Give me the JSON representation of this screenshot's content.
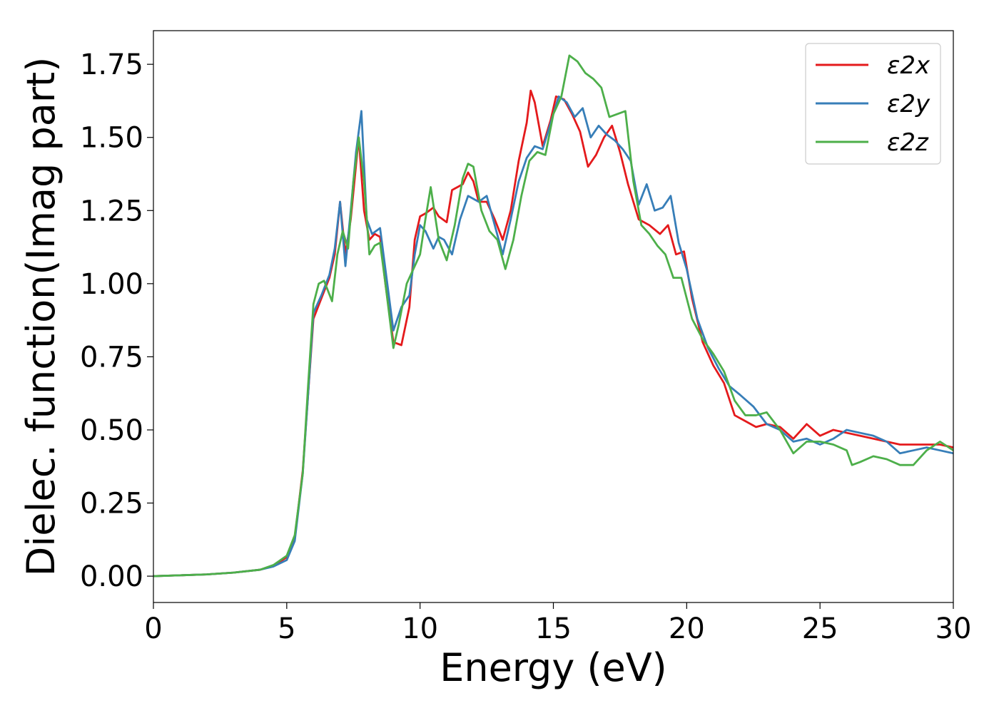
{
  "chart_data": {
    "type": "line",
    "xlabel": "Energy (eV)",
    "ylabel": "Dielec. function(Imag part)",
    "xlim": [
      0,
      30
    ],
    "ylim": [
      -0.09,
      1.865
    ],
    "xticks": [
      "0",
      "5",
      "10",
      "15",
      "20",
      "25",
      "30"
    ],
    "yticks": [
      "0.00",
      "0.25",
      "0.50",
      "0.75",
      "1.00",
      "1.25",
      "1.50",
      "1.75"
    ],
    "grid": false,
    "legend_position": "top-right",
    "series": [
      {
        "name": "ε2x",
        "color": "#e41a1c",
        "x": [
          0,
          1,
          2,
          3,
          4,
          4.5,
          5,
          5.3,
          5.6,
          5.8,
          6,
          6.3,
          6.6,
          6.8,
          7,
          7.2,
          7.4,
          7.7,
          7.9,
          8.1,
          8.3,
          8.5,
          8.7,
          9,
          9.3,
          9.6,
          9.8,
          10,
          10.2,
          10.5,
          10.7,
          11,
          11.2,
          11.4,
          11.6,
          11.8,
          12,
          12.2,
          12.5,
          12.8,
          13.1,
          13.4,
          13.7,
          14,
          14.15,
          14.3,
          14.6,
          14.9,
          15.1,
          15.4,
          15.7,
          16,
          16.3,
          16.6,
          16.9,
          17.2,
          17.5,
          17.8,
          18.2,
          18.6,
          19,
          19.3,
          19.6,
          19.9,
          20.2,
          20.6,
          21,
          21.4,
          21.8,
          22.2,
          22.6,
          23,
          23.5,
          24,
          24.5,
          25,
          25.5,
          26,
          26.5,
          27,
          27.5,
          28,
          28.5,
          29,
          29.5,
          30
        ],
        "y": [
          0.0,
          0.003,
          0.006,
          0.012,
          0.022,
          0.035,
          0.065,
          0.13,
          0.36,
          0.62,
          0.88,
          0.95,
          1.02,
          1.1,
          1.28,
          1.1,
          1.22,
          1.5,
          1.25,
          1.15,
          1.17,
          1.16,
          1.0,
          0.8,
          0.79,
          0.92,
          1.15,
          1.23,
          1.24,
          1.26,
          1.23,
          1.21,
          1.32,
          1.33,
          1.34,
          1.38,
          1.35,
          1.28,
          1.28,
          1.22,
          1.15,
          1.25,
          1.42,
          1.55,
          1.66,
          1.62,
          1.47,
          1.56,
          1.64,
          1.63,
          1.58,
          1.52,
          1.4,
          1.44,
          1.5,
          1.54,
          1.45,
          1.34,
          1.22,
          1.2,
          1.17,
          1.2,
          1.1,
          1.11,
          0.95,
          0.8,
          0.72,
          0.66,
          0.55,
          0.53,
          0.51,
          0.52,
          0.51,
          0.47,
          0.52,
          0.48,
          0.5,
          0.49,
          0.48,
          0.47,
          0.46,
          0.45,
          0.45,
          0.45,
          0.45,
          0.44
        ]
      },
      {
        "name": "ε2y",
        "color": "#377eb8",
        "x": [
          0,
          1,
          2,
          3,
          4,
          4.5,
          5,
          5.3,
          5.6,
          5.8,
          6,
          6.3,
          6.6,
          6.8,
          7,
          7.2,
          7.4,
          7.6,
          7.8,
          8,
          8.2,
          8.5,
          8.7,
          9,
          9.3,
          9.6,
          9.8,
          10,
          10.2,
          10.5,
          10.7,
          10.9,
          11.2,
          11.5,
          11.8,
          12,
          12.2,
          12.5,
          12.8,
          13.1,
          13.4,
          13.7,
          14,
          14.3,
          14.6,
          14.9,
          15.2,
          15.5,
          15.8,
          16.1,
          16.4,
          16.7,
          17,
          17.3,
          17.6,
          17.9,
          18.2,
          18.5,
          18.8,
          19.1,
          19.4,
          19.7,
          20,
          20.4,
          20.8,
          21.2,
          21.6,
          22,
          22.5,
          23,
          23.5,
          24,
          24.5,
          25,
          25.5,
          26,
          26.5,
          27,
          27.5,
          28,
          28.5,
          29,
          29.5,
          30
        ],
        "y": [
          0.0,
          0.003,
          0.006,
          0.012,
          0.022,
          0.033,
          0.055,
          0.12,
          0.35,
          0.62,
          0.9,
          0.96,
          1.03,
          1.12,
          1.28,
          1.06,
          1.25,
          1.45,
          1.59,
          1.22,
          1.17,
          1.19,
          1.05,
          0.84,
          0.92,
          0.96,
          1.1,
          1.2,
          1.18,
          1.12,
          1.16,
          1.15,
          1.1,
          1.22,
          1.3,
          1.29,
          1.28,
          1.3,
          1.2,
          1.1,
          1.22,
          1.35,
          1.43,
          1.47,
          1.46,
          1.55,
          1.64,
          1.62,
          1.57,
          1.6,
          1.5,
          1.54,
          1.51,
          1.49,
          1.46,
          1.42,
          1.27,
          1.34,
          1.25,
          1.26,
          1.3,
          1.14,
          1.05,
          0.88,
          0.78,
          0.71,
          0.65,
          0.62,
          0.58,
          0.52,
          0.5,
          0.46,
          0.47,
          0.45,
          0.47,
          0.5,
          0.49,
          0.48,
          0.46,
          0.42,
          0.43,
          0.44,
          0.43,
          0.42
        ]
      },
      {
        "name": "ε2z",
        "color": "#4daf4a",
        "x": [
          0,
          1,
          2,
          3,
          4,
          4.5,
          5,
          5.3,
          5.6,
          5.8,
          6,
          6.2,
          6.4,
          6.7,
          6.9,
          7.1,
          7.3,
          7.5,
          7.7,
          7.9,
          8.1,
          8.3,
          8.5,
          8.7,
          9,
          9.2,
          9.5,
          9.8,
          10,
          10.2,
          10.4,
          10.7,
          11,
          11.3,
          11.6,
          11.8,
          12,
          12.3,
          12.6,
          12.9,
          13.2,
          13.5,
          13.8,
          14.1,
          14.4,
          14.7,
          15,
          15.3,
          15.6,
          15.9,
          16.2,
          16.5,
          16.8,
          17.1,
          17.4,
          17.7,
          18,
          18.3,
          18.6,
          18.9,
          19.2,
          19.5,
          19.8,
          20.2,
          20.6,
          21,
          21.4,
          21.8,
          22.2,
          22.6,
          23,
          23.5,
          24,
          24.5,
          25,
          25.5,
          26,
          26.2,
          26.5,
          27,
          27.5,
          28,
          28.5,
          29,
          29.5,
          30
        ],
        "y": [
          0.0,
          0.003,
          0.006,
          0.012,
          0.022,
          0.038,
          0.07,
          0.14,
          0.35,
          0.65,
          0.93,
          1.0,
          1.01,
          0.94,
          1.1,
          1.18,
          1.12,
          1.35,
          1.5,
          1.35,
          1.1,
          1.13,
          1.14,
          1.0,
          0.78,
          0.86,
          1.0,
          1.06,
          1.1,
          1.22,
          1.33,
          1.15,
          1.08,
          1.2,
          1.36,
          1.41,
          1.4,
          1.25,
          1.18,
          1.15,
          1.05,
          1.15,
          1.3,
          1.42,
          1.45,
          1.44,
          1.58,
          1.64,
          1.78,
          1.76,
          1.72,
          1.7,
          1.67,
          1.57,
          1.58,
          1.59,
          1.35,
          1.2,
          1.17,
          1.13,
          1.1,
          1.02,
          1.02,
          0.88,
          0.81,
          0.76,
          0.7,
          0.6,
          0.55,
          0.55,
          0.56,
          0.5,
          0.42,
          0.46,
          0.46,
          0.45,
          0.43,
          0.38,
          0.39,
          0.41,
          0.4,
          0.38,
          0.38,
          0.43,
          0.46,
          0.43
        ]
      }
    ]
  }
}
